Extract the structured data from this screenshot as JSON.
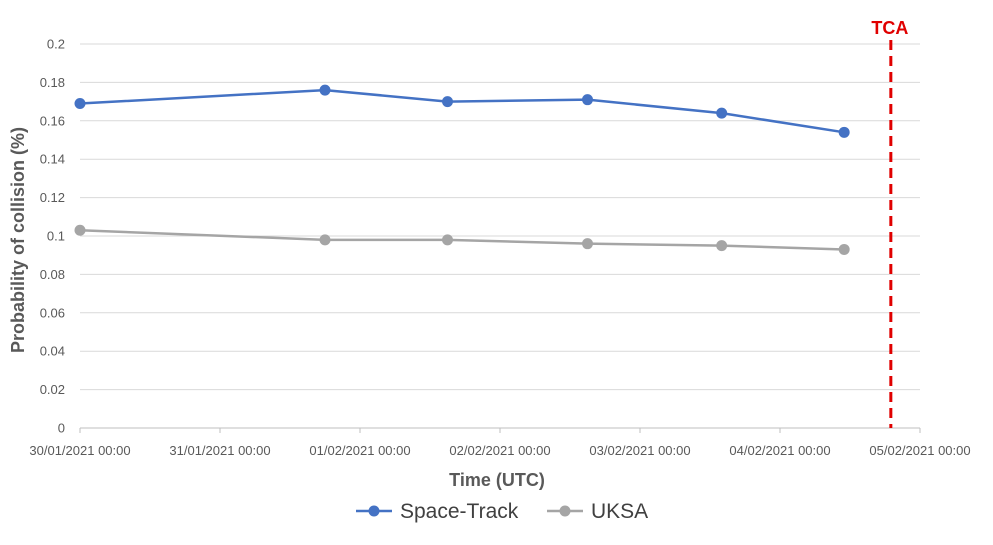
{
  "chart_data": {
    "type": "line",
    "title": "",
    "xlabel": "Time (UTC)",
    "ylabel": "Probability of collision (%)",
    "ylim": [
      0,
      0.2
    ],
    "yticks": [
      0,
      0.02,
      0.04,
      0.06,
      0.08,
      0.1,
      0.12,
      0.14,
      0.16,
      0.18,
      0.2
    ],
    "ytick_labels": [
      "0",
      "0.02",
      "0.04",
      "0.06",
      "0.08",
      "0.1",
      "0.12",
      "0.14",
      "0.16",
      "0.18",
      "0.2"
    ],
    "xlim": [
      "30/01/2021 00:00",
      "05/02/2021 00:00"
    ],
    "xtick_labels": [
      "30/01/2021 00:00",
      "31/01/2021 00:00",
      "01/02/2021 00:00",
      "02/02/2021 00:00",
      "03/02/2021 00:00",
      "04/02/2021 00:00",
      "05/02/2021 00:00"
    ],
    "grid": "horizontal",
    "legend_position": "bottom",
    "series": [
      {
        "name": "Space-Track",
        "color": "#4472C4",
        "x": [
          "30/01/2021 00:00",
          "31/01/2021 18:00",
          "01/02/2021 15:00",
          "02/02/2021 15:00",
          "03/02/2021 14:00",
          "04/02/2021 11:00"
        ],
        "values": [
          0.169,
          0.176,
          0.17,
          0.171,
          0.164,
          0.154
        ]
      },
      {
        "name": "UKSA",
        "color": "#A5A5A5",
        "x": [
          "30/01/2021 00:00",
          "31/01/2021 18:00",
          "01/02/2021 15:00",
          "02/02/2021 15:00",
          "03/02/2021 14:00",
          "04/02/2021 11:00"
        ],
        "values": [
          0.103,
          0.098,
          0.098,
          0.096,
          0.095,
          0.093
        ]
      }
    ],
    "annotations": [
      {
        "label": "TCA",
        "x": "04/02/2021 19:00",
        "color": "#E00000",
        "style": "dashed-vertical-line"
      }
    ]
  }
}
